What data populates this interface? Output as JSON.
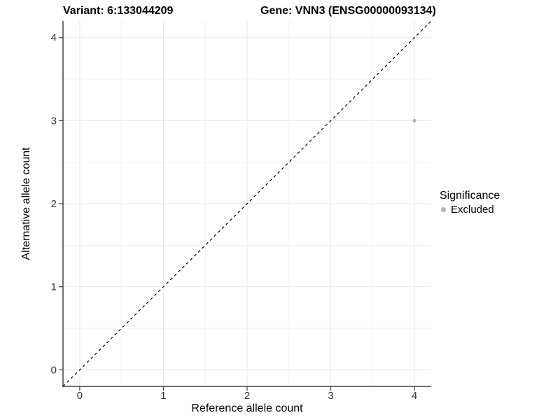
{
  "header": {
    "variant_title": "Variant: 6:133044209",
    "gene_title": "Gene: VNN3 (ENSG00000093134)"
  },
  "legend": {
    "title": "Significance",
    "items": [
      {
        "label": "Excluded",
        "color": "#b2b2b2"
      }
    ]
  },
  "chart_data": {
    "type": "scatter",
    "title": "Variant: 6:133044209   Gene: VNN3 (ENSG00000093134)",
    "xlabel": "Reference allele count",
    "ylabel": "Alternative allele count",
    "xlim": [
      -0.2,
      4.2
    ],
    "ylim": [
      -0.2,
      4.2
    ],
    "x_ticks": [
      0,
      1,
      2,
      3,
      4
    ],
    "y_ticks": [
      0,
      1,
      2,
      3,
      4
    ],
    "grid": {
      "major": true,
      "minor": true,
      "major_color": "#e8e8e8",
      "minor_color": "#f3f3f3"
    },
    "axis_color": "#404040",
    "tick_label_color": "#333333",
    "series": [
      {
        "name": "Excluded",
        "color": "#b2b2b2",
        "marker": "circle",
        "marker_radius_px": 2.5,
        "points": [
          {
            "x": 4,
            "y": 3
          }
        ]
      }
    ],
    "reference_line": {
      "style": "dashed",
      "color": "#000000",
      "x1": -0.2,
      "y1": -0.2,
      "x2": 4.2,
      "y2": 4.2
    },
    "legend_position": "right"
  }
}
